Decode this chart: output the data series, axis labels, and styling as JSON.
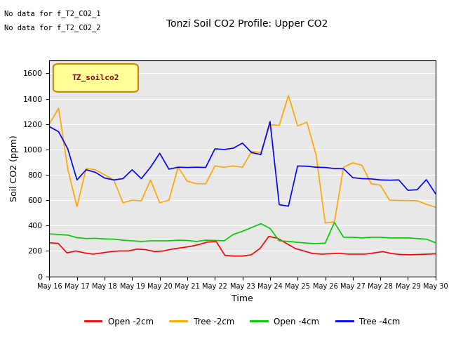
{
  "title": "Tonzi Soil CO2 Profile: Upper CO2",
  "xlabel": "Time",
  "ylabel": "Soil CO2 (ppm)",
  "ylim": [
    0,
    1700
  ],
  "yticks": [
    0,
    200,
    400,
    600,
    800,
    1000,
    1200,
    1400,
    1600
  ],
  "annotations": [
    "No data for f_T2_CO2_1",
    "No data for f_T2_CO2_2"
  ],
  "legend_label": "TZ_soilco2",
  "x_labels": [
    "May 16",
    "May 17",
    "May 18",
    "May 19",
    "May 20",
    "May 21",
    "May 22",
    "May 23",
    "May 24",
    "May 25",
    "May 26",
    "May 27",
    "May 28",
    "May 29",
    "May 30"
  ],
  "background_color": "#e8e8e8",
  "open_2cm_color": "#ff0000",
  "tree_2cm_color": "#ffa500",
  "open_4cm_color": "#00cc00",
  "tree_4cm_color": "#0000ff",
  "open_2cm": [
    265,
    260,
    185,
    200,
    185,
    175,
    185,
    195,
    200,
    200,
    215,
    210,
    195,
    200,
    215,
    225,
    235,
    250,
    270,
    275,
    165,
    160,
    160,
    170,
    220,
    315,
    300,
    260,
    220,
    200,
    180,
    175,
    178,
    182,
    175,
    175,
    175,
    185,
    195,
    180,
    172,
    170,
    172,
    175,
    178
  ],
  "tree_2cm": [
    1200,
    1325,
    845,
    550,
    850,
    840,
    800,
    760,
    580,
    600,
    595,
    760,
    580,
    600,
    860,
    750,
    730,
    730,
    870,
    860,
    870,
    860,
    985,
    975,
    1195,
    1190,
    1425,
    1185,
    1215,
    960,
    420,
    430,
    860,
    895,
    875,
    730,
    718,
    600,
    598,
    597,
    596,
    568,
    545
  ],
  "open_4cm": [
    335,
    330,
    325,
    305,
    298,
    300,
    295,
    293,
    285,
    280,
    275,
    280,
    280,
    280,
    285,
    283,
    275,
    285,
    283,
    280,
    330,
    355,
    385,
    415,
    378,
    280,
    275,
    268,
    262,
    258,
    262,
    425,
    308,
    308,
    303,
    308,
    308,
    303,
    303,
    303,
    298,
    293,
    265
  ],
  "tree_4cm": [
    1180,
    1140,
    1005,
    760,
    840,
    820,
    775,
    760,
    770,
    840,
    770,
    860,
    970,
    845,
    860,
    858,
    860,
    858,
    1005,
    1000,
    1010,
    1050,
    975,
    960,
    1220,
    565,
    553,
    870,
    868,
    860,
    858,
    850,
    848,
    778,
    770,
    768,
    760,
    758,
    760,
    678,
    683,
    762,
    652
  ]
}
